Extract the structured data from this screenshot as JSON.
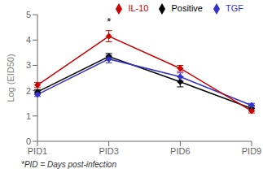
{
  "chart_data": {
    "type": "line",
    "categories": [
      "PID1",
      "PID3",
      "PID6",
      "PID9"
    ],
    "series": [
      {
        "name": "Positive",
        "color": "#000000",
        "values": [
          1.95,
          3.35,
          2.35,
          1.3
        ],
        "errors": [
          0.08,
          0.12,
          0.2,
          0.1
        ]
      },
      {
        "name": "TGF",
        "color": "#3333cc",
        "values": [
          1.85,
          3.25,
          2.55,
          1.42
        ],
        "errors": [
          0.08,
          0.15,
          0.15,
          0.08
        ]
      },
      {
        "name": "IL-10",
        "color": "#cc0000",
        "values": [
          2.22,
          4.15,
          2.88,
          1.2
        ],
        "errors": [
          0.1,
          0.22,
          0.12,
          0.08
        ]
      }
    ],
    "ylabel": "Log (EID50)",
    "ylim": [
      0,
      5
    ],
    "yticks": [
      0,
      1,
      2,
      3,
      4,
      5
    ],
    "annotations": [
      {
        "text": "*",
        "x": "PID3",
        "y": 4.42
      }
    ],
    "footer": "*PID = Days post-infection",
    "legend": "upper right",
    "marker": "diamond",
    "grid": false
  }
}
